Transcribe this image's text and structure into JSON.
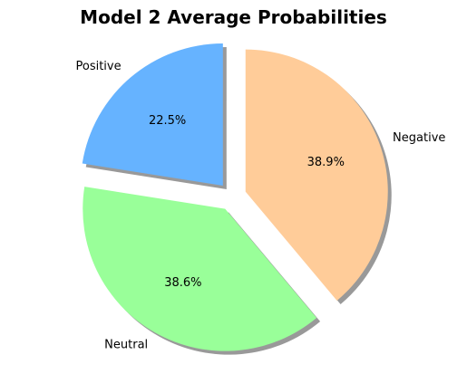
{
  "chart_data": {
    "type": "pie",
    "title": "Model 2 Average Probabilities",
    "slices": [
      {
        "label": "Positive",
        "value": 22.5,
        "pct_label": "22.5%",
        "color": "#66b3ff",
        "exploded": true
      },
      {
        "label": "Neutral",
        "value": 38.6,
        "pct_label": "38.6%",
        "color": "#99ff99",
        "exploded": true
      },
      {
        "label": "Negative",
        "value": 38.9,
        "pct_label": "38.9%",
        "color": "#ffcc99",
        "exploded": true
      }
    ],
    "start_angle_deg": 90,
    "direction": "counterclockwise",
    "shadow": true,
    "legend": "none"
  }
}
